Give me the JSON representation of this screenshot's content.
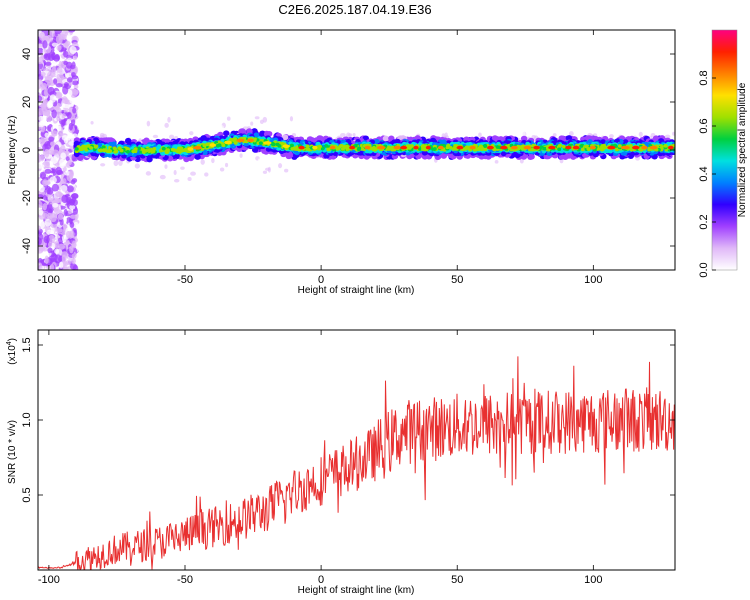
{
  "title": "C2E6.2025.187.04.19.E36",
  "chart_data": [
    {
      "type": "heatmap",
      "xlabel": "Height of straight line (km)",
      "ylabel": "Frequency (Hz)",
      "xlim": [
        -104,
        130
      ],
      "ylim": [
        -50,
        50
      ],
      "xticks": [
        -100,
        -50,
        0,
        50,
        100
      ],
      "yticks": [
        -40,
        -20,
        0,
        20,
        40
      ],
      "colorbar": {
        "label": "Normalized spectral amplitude",
        "range": [
          0,
          1
        ],
        "ticks": [
          0.0,
          0.2,
          0.4,
          0.6,
          0.8
        ],
        "tick_labels": [
          "0.0",
          "0.2",
          "0.4",
          "0.6",
          "0.8"
        ],
        "colormap": [
          "#ffffff",
          "#e0b8f8",
          "#a040ff",
          "#3000ff",
          "#0080ff",
          "#00e0e0",
          "#00d040",
          "#a0e000",
          "#ffe000",
          "#ff8000",
          "#ff2000",
          "#ff0080"
        ]
      },
      "ridge": {
        "x": [
          -92,
          -85,
          -75,
          -65,
          -55,
          -50,
          -45,
          -40,
          -35,
          -30,
          -25,
          -20,
          -15,
          -10,
          -5,
          0,
          10,
          20,
          40,
          60,
          80,
          100,
          120,
          130
        ],
        "y": [
          0,
          1,
          0,
          0,
          0,
          0,
          1,
          2,
          3,
          4,
          4,
          3,
          2,
          1,
          1,
          1,
          1,
          1,
          1,
          1,
          1,
          1,
          1,
          1
        ]
      }
    },
    {
      "type": "line",
      "xlabel": "Height of straight line (km)",
      "ylabel": "SNR (10 * v/v)",
      "y_multiplier": "(x10",
      "y_multiplier_exp": "4",
      "y_multiplier_close": ")",
      "xlim": [
        -104,
        130
      ],
      "ylim": [
        0,
        1.6
      ],
      "xticks": [
        -100,
        -50,
        0,
        50,
        100
      ],
      "yticks": [
        0.5,
        1.0,
        1.5
      ],
      "ytick_labels": [
        "0.5",
        "1.0",
        "1.5"
      ],
      "series": [
        {
          "color": "#e83030",
          "trend_x": [
            -104,
            -95,
            -85,
            -75,
            -60,
            -45,
            -30,
            -20,
            -10,
            0,
            10,
            20,
            25,
            30,
            50,
            70,
            90,
            110,
            130
          ],
          "trend_y": [
            0.01,
            0.02,
            0.08,
            0.14,
            0.18,
            0.26,
            0.33,
            0.4,
            0.52,
            0.6,
            0.68,
            0.78,
            0.85,
            0.92,
            0.96,
            0.98,
            0.99,
            1.0,
            1.0
          ]
        }
      ]
    }
  ]
}
